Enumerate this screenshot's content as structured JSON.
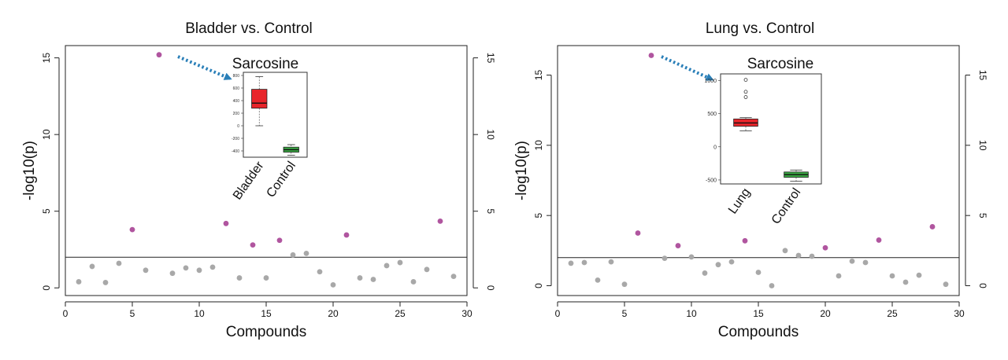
{
  "chart_data": [
    {
      "type": "scatter",
      "title": "Bladder vs. Control",
      "xlabel": "Compounds",
      "ylabel": "-log10(p)",
      "xlim": [
        0,
        30
      ],
      "ylim": [
        -0.5,
        15.8
      ],
      "xticks": [
        0,
        5,
        10,
        15,
        20,
        25,
        30
      ],
      "yticks": [
        0,
        5,
        10,
        15
      ],
      "right_yticks": [
        0,
        5,
        10,
        15
      ],
      "threshold": 2,
      "grid": false,
      "colors": {
        "significant": "#b0559f",
        "nonsignificant": "#a8a8a8",
        "arrow": "#2a7fb8"
      },
      "points": [
        {
          "x": 1,
          "y": 0.4,
          "significant": false
        },
        {
          "x": 2,
          "y": 1.4,
          "significant": false
        },
        {
          "x": 3,
          "y": 0.35,
          "significant": false
        },
        {
          "x": 4,
          "y": 1.6,
          "significant": false
        },
        {
          "x": 5,
          "y": 3.8,
          "significant": true
        },
        {
          "x": 6,
          "y": 1.15,
          "significant": false
        },
        {
          "x": 7,
          "y": 15.2,
          "significant": true
        },
        {
          "x": 8,
          "y": 0.95,
          "significant": false
        },
        {
          "x": 9,
          "y": 1.3,
          "significant": false
        },
        {
          "x": 10,
          "y": 1.15,
          "significant": false
        },
        {
          "x": 11,
          "y": 1.35,
          "significant": false
        },
        {
          "x": 12,
          "y": 4.2,
          "significant": true
        },
        {
          "x": 13,
          "y": 0.65,
          "significant": false
        },
        {
          "x": 14,
          "y": 2.8,
          "significant": true
        },
        {
          "x": 15,
          "y": 0.65,
          "significant": false
        },
        {
          "x": 16,
          "y": 3.1,
          "significant": true
        },
        {
          "x": 17,
          "y": 2.15,
          "significant": false
        },
        {
          "x": 18,
          "y": 2.25,
          "significant": false
        },
        {
          "x": 19,
          "y": 1.05,
          "significant": false
        },
        {
          "x": 20,
          "y": 0.2,
          "significant": false
        },
        {
          "x": 21,
          "y": 3.45,
          "significant": true
        },
        {
          "x": 22,
          "y": 0.65,
          "significant": false
        },
        {
          "x": 23,
          "y": 0.55,
          "significant": false
        },
        {
          "x": 24,
          "y": 1.45,
          "significant": false
        },
        {
          "x": 25,
          "y": 1.65,
          "significant": false
        },
        {
          "x": 26,
          "y": 0.4,
          "significant": false
        },
        {
          "x": 27,
          "y": 1.2,
          "significant": false
        },
        {
          "x": 28,
          "y": 4.35,
          "significant": true
        },
        {
          "x": 29,
          "y": 0.75,
          "significant": false
        }
      ],
      "inset": {
        "type": "box",
        "title": "Sarcosine",
        "categories": [
          "Bladder",
          "Control"
        ],
        "ylim": [
          -500,
          850
        ],
        "yticks": [
          -400,
          -200,
          0,
          200,
          400,
          600,
          800
        ],
        "boxes": [
          {
            "name": "Bladder",
            "color": "#e8252b",
            "whisker_low": 0,
            "q1": 280,
            "median": 360,
            "q3": 580,
            "whisker_high": 780
          },
          {
            "name": "Control",
            "color": "#3aa843",
            "whisker_low": -470,
            "q1": -420,
            "median": -380,
            "q3": -340,
            "whisker_high": -300
          }
        ],
        "outliers": []
      }
    },
    {
      "type": "scatter",
      "title": "Lung vs. Control",
      "xlabel": "Compounds",
      "ylabel": "-log10(p)",
      "xlim": [
        0,
        30
      ],
      "ylim": [
        -0.7,
        17.1
      ],
      "xticks": [
        0,
        5,
        10,
        15,
        20,
        25,
        30
      ],
      "yticks": [
        0,
        5,
        10,
        15
      ],
      "right_yticks": [
        0,
        5,
        10,
        15
      ],
      "threshold": 2,
      "grid": false,
      "colors": {
        "significant": "#b0559f",
        "nonsignificant": "#a8a8a8",
        "arrow": "#2a7fb8"
      },
      "points": [
        {
          "x": 1,
          "y": 1.6,
          "significant": false
        },
        {
          "x": 2,
          "y": 1.65,
          "significant": false
        },
        {
          "x": 3,
          "y": 0.4,
          "significant": false
        },
        {
          "x": 4,
          "y": 1.7,
          "significant": false
        },
        {
          "x": 5,
          "y": 0.1,
          "significant": false
        },
        {
          "x": 6,
          "y": 3.75,
          "significant": true
        },
        {
          "x": 7,
          "y": 16.4,
          "significant": true
        },
        {
          "x": 8,
          "y": 1.95,
          "significant": false
        },
        {
          "x": 9,
          "y": 2.85,
          "significant": true
        },
        {
          "x": 10,
          "y": 2.05,
          "significant": false
        },
        {
          "x": 11,
          "y": 0.9,
          "significant": false
        },
        {
          "x": 12,
          "y": 1.5,
          "significant": false
        },
        {
          "x": 13,
          "y": 1.7,
          "significant": false
        },
        {
          "x": 14,
          "y": 3.2,
          "significant": true
        },
        {
          "x": 15,
          "y": 0.95,
          "significant": false
        },
        {
          "x": 16,
          "y": 0.0,
          "significant": false
        },
        {
          "x": 17,
          "y": 2.5,
          "significant": false
        },
        {
          "x": 18,
          "y": 2.15,
          "significant": false
        },
        {
          "x": 19,
          "y": 2.1,
          "significant": false
        },
        {
          "x": 20,
          "y": 2.7,
          "significant": true
        },
        {
          "x": 21,
          "y": 0.7,
          "significant": false
        },
        {
          "x": 22,
          "y": 1.75,
          "significant": false
        },
        {
          "x": 23,
          "y": 1.65,
          "significant": false
        },
        {
          "x": 24,
          "y": 3.25,
          "significant": true
        },
        {
          "x": 25,
          "y": 0.7,
          "significant": false
        },
        {
          "x": 26,
          "y": 0.25,
          "significant": false
        },
        {
          "x": 27,
          "y": 0.75,
          "significant": false
        },
        {
          "x": 28,
          "y": 4.2,
          "significant": true
        },
        {
          "x": 29,
          "y": 0.1,
          "significant": false
        }
      ],
      "inset": {
        "type": "box",
        "title": "Sarcosine",
        "categories": [
          "Lung",
          "Control"
        ],
        "ylim": [
          -560,
          1100
        ],
        "yticks": [
          -500,
          0,
          500,
          1000
        ],
        "boxes": [
          {
            "name": "Lung",
            "color": "#e8252b",
            "whisker_low": 240,
            "q1": 310,
            "median": 360,
            "q3": 420,
            "whisker_high": 440
          },
          {
            "name": "Control",
            "color": "#3aa843",
            "whisker_low": -520,
            "q1": -460,
            "median": -420,
            "q3": -380,
            "whisker_high": -350
          }
        ],
        "outliers": [
          {
            "category": "Lung",
            "value": 1010
          },
          {
            "category": "Lung",
            "value": 830
          },
          {
            "category": "Lung",
            "value": 750
          }
        ]
      }
    }
  ]
}
